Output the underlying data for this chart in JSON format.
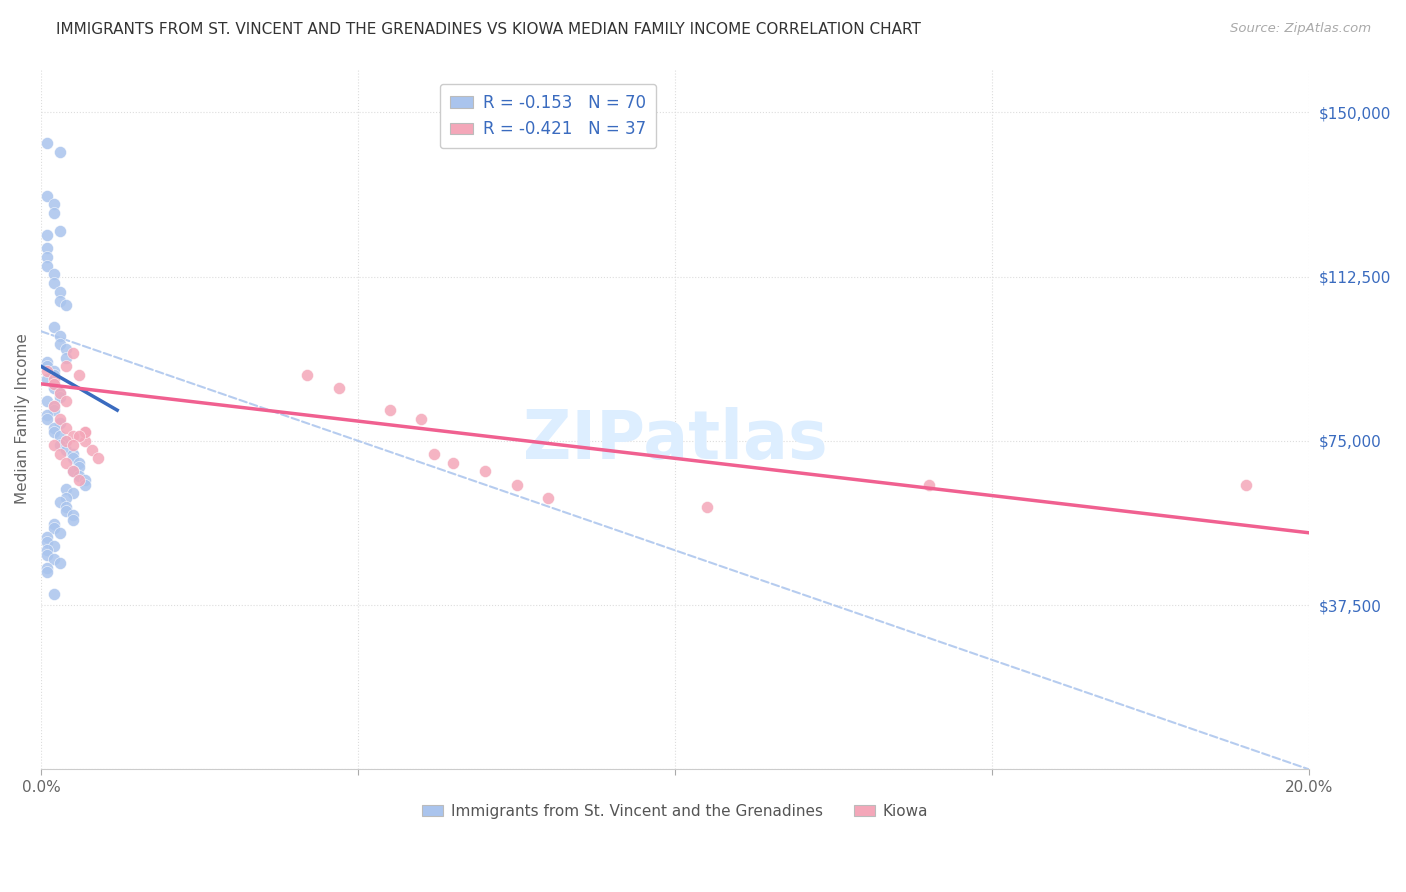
{
  "title": "IMMIGRANTS FROM ST. VINCENT AND THE GRENADINES VS KIOWA MEDIAN FAMILY INCOME CORRELATION CHART",
  "source": "Source: ZipAtlas.com",
  "ylabel": "Median Family Income",
  "xlim": [
    0.0,
    0.2
  ],
  "ylim": [
    0,
    160000
  ],
  "ytick_vals": [
    37500,
    75000,
    112500,
    150000
  ],
  "ytick_labels": [
    "$37,500",
    "$75,000",
    "$112,500",
    "$150,000"
  ],
  "xtick_vals": [
    0.0,
    0.05,
    0.1,
    0.15,
    0.2
  ],
  "xtick_labels": [
    "0.0%",
    "",
    "",
    "",
    "20.0%"
  ],
  "legend_line1": "R = -0.153   N = 70",
  "legend_line2": "R = -0.421   N = 37",
  "series1_label": "Immigrants from St. Vincent and the Grenadines",
  "series2_label": "Kiowa",
  "series1_color": "#aac4ed",
  "series2_color": "#f4a7b9",
  "series1_line_color": "#3a6bbf",
  "series2_line_color": "#f06090",
  "dashed_line_color": "#aac4ed",
  "watermark_color": "#ddeeff",
  "background_color": "#ffffff",
  "grid_color": "#dddddd",
  "tick_label_color": "#3a6bbf",
  "title_color": "#333333",
  "source_color": "#aaaaaa",
  "ylabel_color": "#666666",
  "xtick_color": "#666666",
  "series1_x": [
    0.001,
    0.003,
    0.001,
    0.002,
    0.002,
    0.003,
    0.001,
    0.001,
    0.001,
    0.001,
    0.002,
    0.002,
    0.003,
    0.003,
    0.004,
    0.002,
    0.003,
    0.003,
    0.004,
    0.004,
    0.001,
    0.001,
    0.002,
    0.002,
    0.001,
    0.002,
    0.002,
    0.003,
    0.003,
    0.001,
    0.002,
    0.002,
    0.001,
    0.001,
    0.003,
    0.002,
    0.002,
    0.003,
    0.004,
    0.003,
    0.004,
    0.005,
    0.005,
    0.006,
    0.006,
    0.005,
    0.006,
    0.007,
    0.007,
    0.004,
    0.005,
    0.004,
    0.003,
    0.004,
    0.004,
    0.005,
    0.005,
    0.002,
    0.002,
    0.003,
    0.001,
    0.001,
    0.002,
    0.001,
    0.001,
    0.002,
    0.003,
    0.001,
    0.001,
    0.002
  ],
  "series1_y": [
    143000,
    141000,
    131000,
    129000,
    127000,
    123000,
    122000,
    119000,
    117000,
    115000,
    113000,
    111000,
    109000,
    107000,
    106000,
    101000,
    99000,
    97000,
    96000,
    94000,
    93000,
    92000,
    91000,
    90000,
    89000,
    88000,
    87000,
    86000,
    85000,
    84000,
    83000,
    82000,
    81000,
    80000,
    79000,
    78000,
    77000,
    76000,
    75000,
    74000,
    73000,
    72000,
    71000,
    70000,
    69000,
    68000,
    67000,
    66000,
    65000,
    64000,
    63000,
    62000,
    61000,
    60000,
    59000,
    58000,
    57000,
    56000,
    55000,
    54000,
    53000,
    52000,
    51000,
    50000,
    49000,
    48000,
    47000,
    46000,
    45000,
    40000
  ],
  "series2_x": [
    0.001,
    0.002,
    0.002,
    0.003,
    0.004,
    0.002,
    0.003,
    0.004,
    0.005,
    0.005,
    0.002,
    0.003,
    0.004,
    0.005,
    0.006,
    0.004,
    0.006,
    0.007,
    0.007,
    0.008,
    0.009,
    0.007,
    0.006,
    0.004,
    0.005,
    0.042,
    0.047,
    0.055,
    0.06,
    0.062,
    0.065,
    0.07,
    0.075,
    0.08,
    0.105,
    0.14,
    0.19
  ],
  "series2_y": [
    91000,
    89000,
    88000,
    86000,
    84000,
    83000,
    80000,
    78000,
    76000,
    95000,
    74000,
    72000,
    70000,
    68000,
    66000,
    92000,
    90000,
    77000,
    75000,
    73000,
    71000,
    77000,
    76000,
    75000,
    74000,
    90000,
    87000,
    82000,
    80000,
    72000,
    70000,
    68000,
    65000,
    62000,
    60000,
    65000,
    65000
  ],
  "blue_line_x": [
    0.0,
    0.012
  ],
  "blue_line_y": [
    92000,
    82000
  ],
  "pink_line_x": [
    0.0,
    0.2
  ],
  "pink_line_y": [
    88000,
    54000
  ],
  "dash_line_x": [
    0.0,
    0.2
  ],
  "dash_line_y": [
    100000,
    0
  ]
}
